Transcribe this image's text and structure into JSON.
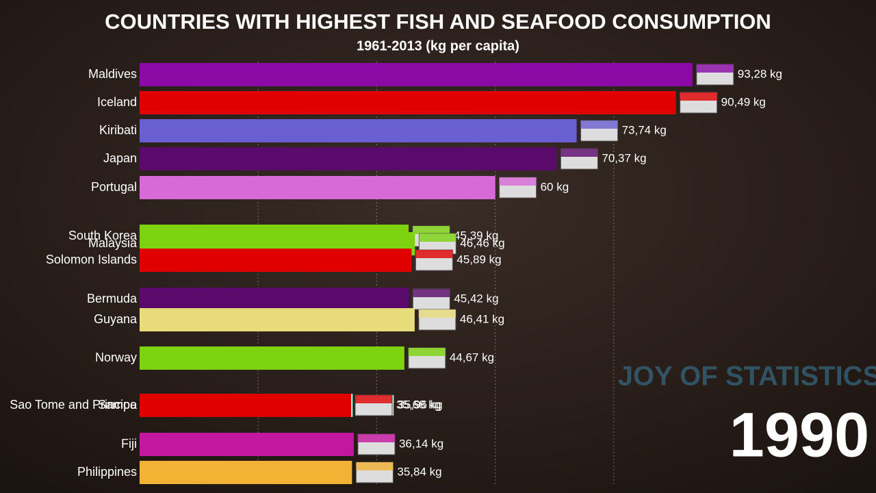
{
  "chart_data": {
    "type": "bar",
    "orientation": "horizontal",
    "title": "COUNTRIES WITH HIGHEST FISH AND SEAFOOD CONSUMPTION",
    "subtitle": "1961-2013 (kg per capita)",
    "year": "1990",
    "watermark": "JOY OF STATISTICS",
    "categories": [
      "Maldives",
      "Iceland",
      "Kiribati",
      "Japan",
      "Portugal",
      "South Korea",
      "Malaysia",
      "Solomon Islands",
      "Bermuda",
      "Guyana",
      "Norway",
      "Sao Tome and Principe",
      "Samoa",
      "Fiji",
      "Philippines"
    ],
    "values": [
      93.28,
      90.49,
      73.74,
      70.37,
      60,
      45.39,
      46.46,
      45.89,
      45.42,
      46.41,
      44.67,
      35.96,
      35.68,
      36.14,
      35.84
    ],
    "value_labels": [
      "93,28 kg",
      "90,49 kg",
      "73,74 kg",
      "70,37 kg",
      "60 kg",
      "45,39 kg",
      "46,46 kg",
      "45,89 kg",
      "45,42 kg",
      "46,41 kg",
      "44,67 kg",
      "35,96 kg",
      "35,68 kg",
      "36,14 kg",
      "35,84 kg"
    ],
    "colors": [
      "#8b0aa5",
      "#e00000",
      "#6a5fd0",
      "#5a0a6a",
      "#d86ad8",
      "#7dd30f",
      "#7dd30f",
      "#e00000",
      "#5a0a6a",
      "#e8dc7a",
      "#7dd30f",
      "#9ef5d8",
      "#e00000",
      "#c2179e",
      "#f2b233"
    ],
    "xlim": [
      0,
      100
    ],
    "xticks": [
      20,
      40,
      60,
      80
    ],
    "grid": true
  }
}
